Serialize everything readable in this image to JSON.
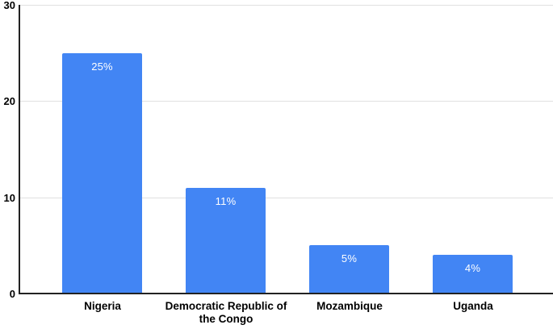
{
  "chart": {
    "background_color": "#ffffff",
    "bar_color": "#4285f4",
    "gridline_color": "#e0e0e0",
    "axis_color": "#222222",
    "value_label_color": "#ffffff",
    "category_label_color": "#000000",
    "tick_label_color": "#000000"
  },
  "chart_data": {
    "type": "bar",
    "categories": [
      "Nigeria",
      "Democratic Republic of the Congo",
      "Mozambique",
      "Uganda"
    ],
    "values": [
      25,
      11,
      5,
      4
    ],
    "value_labels": [
      "25%",
      "11%",
      "5%",
      "4%"
    ],
    "title": "",
    "xlabel": "",
    "ylabel": "",
    "ylim": [
      0,
      30
    ],
    "yticks": [
      0,
      10,
      20,
      30
    ],
    "grid": true,
    "legend": "none"
  }
}
